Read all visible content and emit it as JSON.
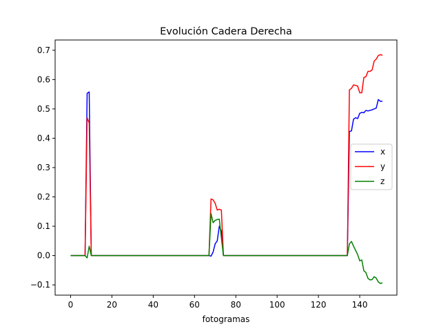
{
  "chart_data": {
    "type": "line",
    "title": "Evolución Cadera Derecha",
    "xlabel": "fotogramas",
    "ylabel": "",
    "xlim": [
      -7.5,
      158
    ],
    "ylim": [
      -0.135,
      0.735
    ],
    "xticks": [
      0,
      20,
      40,
      60,
      80,
      100,
      120,
      140
    ],
    "yticks": [
      -0.1,
      0.0,
      0.1,
      0.2,
      0.3,
      0.4,
      0.5,
      0.6,
      0.7
    ],
    "ytick_labels": [
      "−0.1",
      "0.0",
      "0.1",
      "0.2",
      "0.3",
      "0.4",
      "0.5",
      "0.6",
      "0.7"
    ],
    "grid": false,
    "legend_position": "center-right",
    "series": [
      {
        "name": "x",
        "color": "#0000ff",
        "x": [
          0,
          7,
          8,
          9,
          10,
          11,
          20,
          40,
          60,
          67,
          68,
          69,
          70,
          71,
          72,
          73,
          74,
          80,
          100,
          120,
          134,
          135,
          136,
          137,
          138,
          139,
          140,
          141,
          142,
          143,
          144,
          145,
          146,
          147,
          148,
          149,
          150,
          151
        ],
        "y": [
          0.0,
          0.0,
          0.553,
          0.558,
          0.0,
          0.0,
          0.0,
          0.0,
          0.0,
          0.0,
          -0.002,
          0.012,
          0.04,
          0.05,
          0.1,
          0.083,
          0.0,
          0.0,
          0.0,
          0.0,
          0.0,
          0.423,
          0.425,
          0.465,
          0.47,
          0.467,
          0.485,
          0.488,
          0.487,
          0.495,
          0.493,
          0.495,
          0.497,
          0.5,
          0.503,
          0.532,
          0.526,
          0.526
        ]
      },
      {
        "name": "y",
        "color": "#ff0000",
        "x": [
          0,
          7,
          8,
          9,
          10,
          11,
          20,
          40,
          60,
          67,
          68,
          69,
          70,
          71,
          72,
          73,
          74,
          80,
          100,
          120,
          134,
          135,
          136,
          137,
          138,
          139,
          140,
          141,
          142,
          143,
          144,
          145,
          146,
          147,
          148,
          149,
          150,
          151
        ],
        "y": [
          0.0,
          0.0,
          0.47,
          0.452,
          0.0,
          0.0,
          0.0,
          0.0,
          0.0,
          0.0,
          0.193,
          0.19,
          0.178,
          0.155,
          0.158,
          0.155,
          0.0,
          0.0,
          0.0,
          0.0,
          0.0,
          0.565,
          0.57,
          0.582,
          0.58,
          0.578,
          0.555,
          0.555,
          0.607,
          0.61,
          0.628,
          0.628,
          0.633,
          0.663,
          0.67,
          0.682,
          0.685,
          0.683
        ]
      },
      {
        "name": "z",
        "color": "#008000",
        "x": [
          0,
          7,
          8,
          9,
          10,
          11,
          20,
          40,
          60,
          67,
          68,
          69,
          70,
          71,
          72,
          73,
          74,
          80,
          100,
          120,
          134,
          135,
          136,
          137,
          138,
          139,
          140,
          141,
          142,
          143,
          144,
          145,
          146,
          147,
          148,
          149,
          150,
          151
        ],
        "y": [
          0.0,
          0.0,
          -0.008,
          0.032,
          0.0,
          0.0,
          0.0,
          0.0,
          0.0,
          0.0,
          0.143,
          0.112,
          0.12,
          0.123,
          0.124,
          0.06,
          0.0,
          0.0,
          0.0,
          0.0,
          0.0,
          0.04,
          0.048,
          0.032,
          0.018,
          0.003,
          -0.018,
          -0.015,
          -0.052,
          -0.058,
          -0.078,
          -0.083,
          -0.082,
          -0.072,
          -0.077,
          -0.09,
          -0.095,
          -0.093
        ]
      }
    ]
  }
}
